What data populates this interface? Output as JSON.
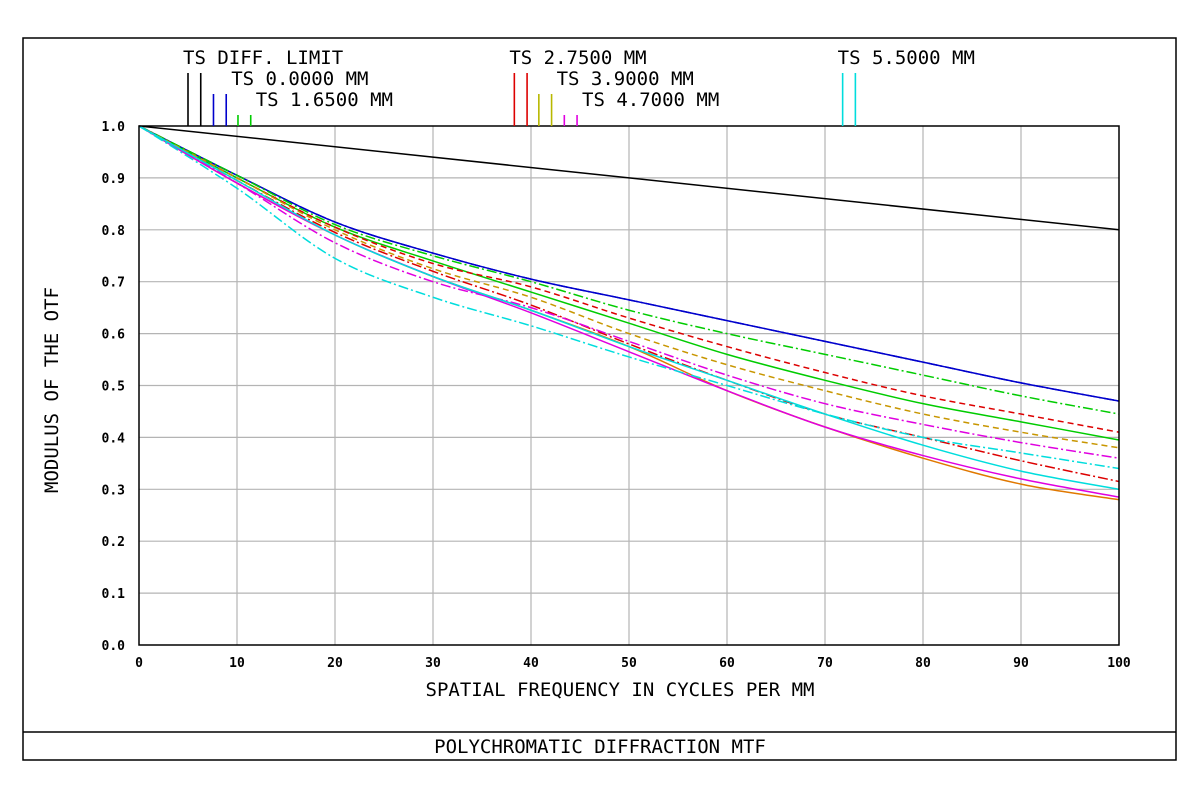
{
  "chart_data": {
    "type": "line",
    "title": "POLYCHROMATIC DIFFRACTION MTF",
    "xlabel": "SPATIAL FREQUENCY IN CYCLES PER MM",
    "ylabel": "MODULUS OF THE OTF",
    "xlim": [
      0,
      100
    ],
    "ylim": [
      0,
      1
    ],
    "grid": true,
    "x_ticks": [
      "0",
      "10",
      "20",
      "30",
      "40",
      "50",
      "60",
      "70",
      "80",
      "90",
      "100"
    ],
    "y_ticks": [
      "0.0",
      "0.1",
      "0.2",
      "0.3",
      "0.4",
      "0.5",
      "0.6",
      "0.7",
      "0.8",
      "0.9",
      "1.0"
    ],
    "legend": [
      {
        "label": "TS DIFF. LIMIT",
        "colors": [
          "#000000",
          "#000000"
        ],
        "marker_x": [
          5.0,
          6.3
        ]
      },
      {
        "label": "TS 0.0000 MM",
        "colors": [
          "#0000cc",
          "#0000cc"
        ],
        "marker_x": [
          7.6,
          8.9
        ]
      },
      {
        "label": "TS 1.6500 MM",
        "colors": [
          "#00cc00",
          "#00cc00"
        ],
        "marker_x": [
          10.1,
          11.4
        ]
      },
      {
        "label": "TS 2.7500 MM",
        "colors": [
          "#dd0000",
          "#dd0000"
        ],
        "marker_x": [
          38.3,
          39.6
        ]
      },
      {
        "label": "TS 3.9000 MM",
        "colors": [
          "#b8b800",
          "#b8b800"
        ],
        "marker_x": [
          40.8,
          42.1
        ]
      },
      {
        "label": "TS 4.7000 MM",
        "colors": [
          "#e000e0",
          "#e000e0"
        ],
        "marker_x": [
          43.4,
          44.7
        ]
      },
      {
        "label": "TS 5.5000 MM",
        "colors": [
          "#00dddd",
          "#00dddd"
        ],
        "marker_x": [
          71.8,
          73.1
        ]
      }
    ],
    "series": [
      {
        "name": "TS DIFF. LIMIT",
        "color": "#000000",
        "dash": "",
        "x": [
          0,
          100
        ],
        "y": [
          1.0,
          0.8
        ]
      },
      {
        "name": "0.0000 MM T",
        "color": "#0000cc",
        "dash": "",
        "x": [
          0,
          10,
          20,
          30,
          40,
          50,
          60,
          70,
          80,
          90,
          100
        ],
        "y": [
          1.0,
          0.905,
          0.815,
          0.755,
          0.705,
          0.665,
          0.625,
          0.585,
          0.545,
          0.505,
          0.47
        ]
      },
      {
        "name": "0.0000 MM S",
        "color": "#0000cc",
        "dash": "10,3,2,3",
        "x": [
          0,
          10,
          20,
          30,
          40,
          50,
          60,
          70,
          80,
          90,
          100
        ],
        "y": [
          1.0,
          0.905,
          0.815,
          0.755,
          0.705,
          0.665,
          0.625,
          0.585,
          0.545,
          0.505,
          0.47
        ]
      },
      {
        "name": "1.6500 MM T",
        "color": "#00cc00",
        "dash": "",
        "x": [
          0,
          10,
          20,
          30,
          40,
          50,
          60,
          70,
          80,
          90,
          100
        ],
        "y": [
          1.0,
          0.9,
          0.805,
          0.74,
          0.68,
          0.62,
          0.56,
          0.51,
          0.465,
          0.43,
          0.395
        ]
      },
      {
        "name": "1.6500 MM S",
        "color": "#00cc00",
        "dash": "10,3,2,3",
        "x": [
          0,
          10,
          20,
          30,
          40,
          50,
          60,
          70,
          80,
          90,
          100
        ],
        "y": [
          1.0,
          0.905,
          0.81,
          0.75,
          0.7,
          0.645,
          0.6,
          0.56,
          0.52,
          0.48,
          0.445
        ]
      },
      {
        "name": "2.7500 MM T",
        "color": "#dd0000",
        "dash": "6,4",
        "x": [
          0,
          10,
          20,
          30,
          40,
          50,
          60,
          70,
          80,
          90,
          100
        ],
        "y": [
          1.0,
          0.9,
          0.805,
          0.735,
          0.69,
          0.63,
          0.575,
          0.525,
          0.48,
          0.445,
          0.41
        ]
      },
      {
        "name": "2.7500 MM S",
        "color": "#dd0000",
        "dash": "10,3,2,3",
        "x": [
          0,
          10,
          20,
          30,
          40,
          50,
          60,
          70,
          80,
          90,
          100
        ],
        "y": [
          1.0,
          0.895,
          0.795,
          0.72,
          0.655,
          0.58,
          0.51,
          0.445,
          0.4,
          0.355,
          0.315
        ]
      },
      {
        "name": "3.9000 MM T",
        "color": "#c89600",
        "dash": "6,4",
        "x": [
          0,
          10,
          20,
          30,
          40,
          50,
          60,
          70,
          80,
          90,
          100
        ],
        "y": [
          1.0,
          0.9,
          0.8,
          0.725,
          0.67,
          0.6,
          0.54,
          0.49,
          0.445,
          0.41,
          0.38
        ]
      },
      {
        "name": "3.9000 MM S",
        "color": "#e07800",
        "dash": "",
        "x": [
          0,
          10,
          20,
          30,
          40,
          50,
          60,
          70,
          80,
          90,
          100
        ],
        "y": [
          1.0,
          0.89,
          0.79,
          0.71,
          0.645,
          0.575,
          0.49,
          0.42,
          0.36,
          0.31,
          0.28
        ]
      },
      {
        "name": "4.7000 MM T",
        "color": "#e000e0",
        "dash": "10,3,2,3",
        "x": [
          0,
          10,
          20,
          30,
          40,
          50,
          60,
          70,
          80,
          90,
          100
        ],
        "y": [
          1.0,
          0.89,
          0.775,
          0.7,
          0.65,
          0.585,
          0.52,
          0.465,
          0.425,
          0.39,
          0.36
        ]
      },
      {
        "name": "4.7000 MM S",
        "color": "#e000e0",
        "dash": "",
        "x": [
          0,
          10,
          20,
          30,
          40,
          50,
          60,
          70,
          80,
          90,
          100
        ],
        "y": [
          1.0,
          0.89,
          0.79,
          0.71,
          0.64,
          0.565,
          0.49,
          0.42,
          0.365,
          0.32,
          0.285
        ]
      },
      {
        "name": "5.5000 MM T",
        "color": "#00dddd",
        "dash": "10,3,2,3",
        "x": [
          0,
          10,
          20,
          30,
          40,
          50,
          60,
          70,
          80,
          90,
          100
        ],
        "y": [
          1.0,
          0.88,
          0.745,
          0.67,
          0.615,
          0.555,
          0.5,
          0.445,
          0.4,
          0.37,
          0.34
        ]
      },
      {
        "name": "5.5000 MM S",
        "color": "#00dddd",
        "dash": "",
        "x": [
          0,
          10,
          20,
          30,
          40,
          50,
          60,
          70,
          80,
          90,
          100
        ],
        "y": [
          1.0,
          0.895,
          0.79,
          0.71,
          0.645,
          0.575,
          0.51,
          0.445,
          0.385,
          0.335,
          0.3
        ]
      }
    ]
  }
}
